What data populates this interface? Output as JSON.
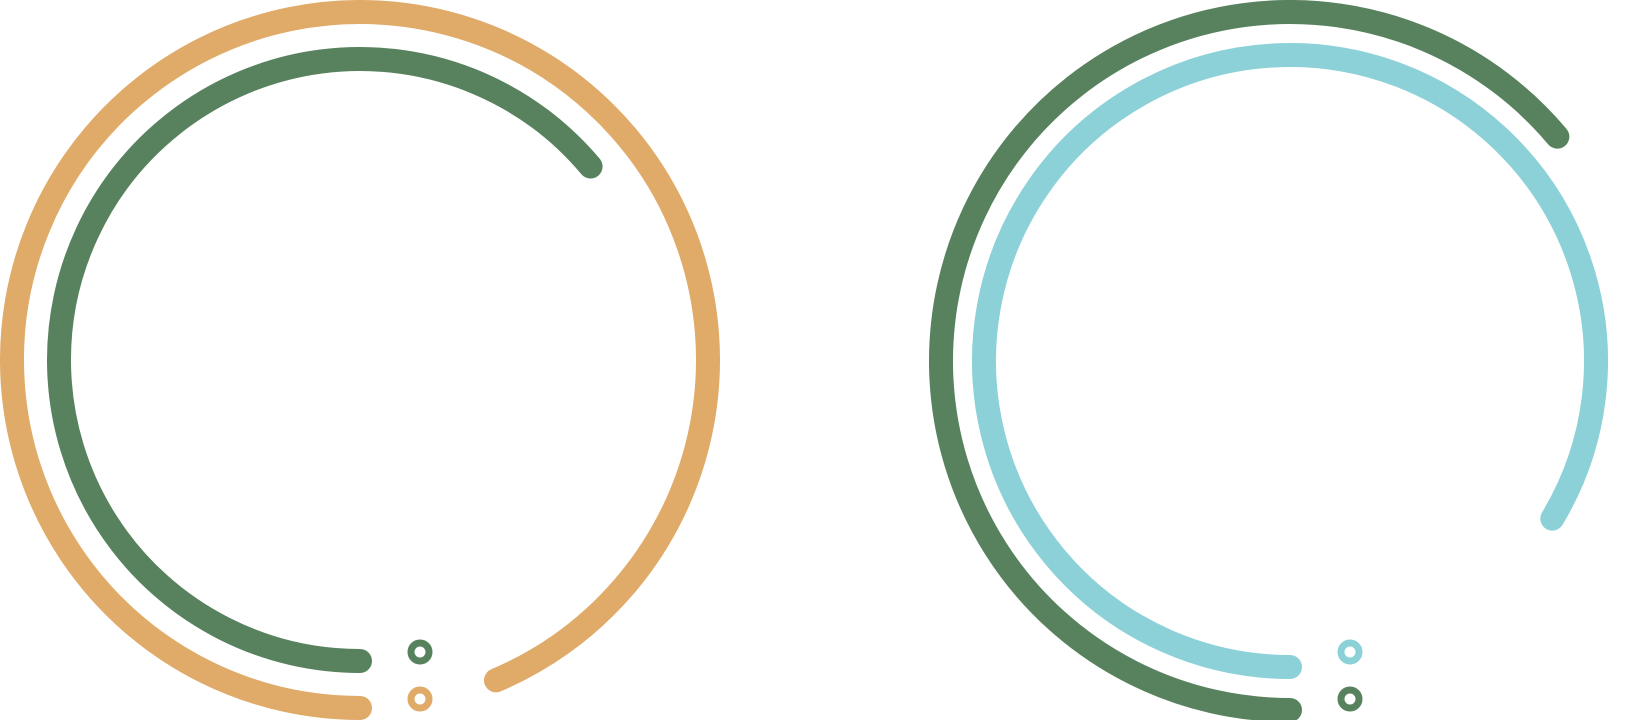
{
  "chart_data": [
    {
      "type": "radial-bar",
      "title": "",
      "scale_max_degrees": 360,
      "series": [
        {
          "color": "#E0AA68",
          "value_degrees": 337
        },
        {
          "color": "#58825E",
          "value_degrees": 230
        }
      ]
    },
    {
      "type": "radial-bar",
      "title": "",
      "scale_max_degrees": 360,
      "series": [
        {
          "color": "#58825E",
          "value_degrees": 230
        },
        {
          "color": "#8DD1D8",
          "value_degrees": 301
        }
      ]
    }
  ]
}
